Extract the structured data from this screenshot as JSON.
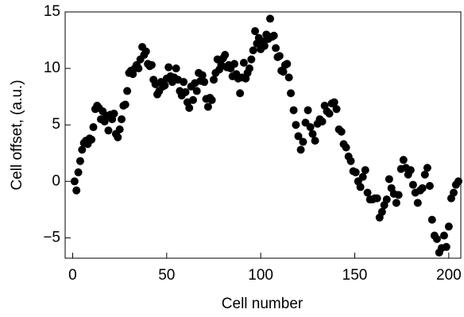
{
  "chart_data": {
    "type": "scatter",
    "xlabel": "Cell number",
    "ylabel": "Cell offset, (a.u.)",
    "color": "#000000",
    "xlim": [
      -4,
      206.4
    ],
    "ylim": [
      -6.8,
      15
    ],
    "xticks": [
      0,
      50,
      100,
      150,
      200
    ],
    "yticks": [
      {
        "value": -5,
        "label": "−5"
      },
      0,
      5,
      10,
      15
    ],
    "x": [
      1,
      2,
      3,
      4,
      5,
      6,
      7,
      8,
      9,
      10,
      11,
      12,
      13,
      14,
      15,
      16,
      17,
      18,
      19,
      20,
      21,
      22,
      23,
      24,
      25,
      26,
      27,
      28,
      29,
      30,
      31,
      32,
      33,
      34,
      35,
      36,
      37,
      38,
      39,
      40,
      41,
      42,
      43,
      44,
      45,
      46,
      47,
      48,
      49,
      50,
      51,
      52,
      53,
      54,
      55,
      56,
      57,
      58,
      59,
      60,
      61,
      62,
      63,
      64,
      65,
      66,
      67,
      68,
      69,
      70,
      71,
      72,
      73,
      74,
      75,
      76,
      77,
      78,
      79,
      80,
      81,
      82,
      83,
      84,
      85,
      86,
      87,
      88,
      89,
      90,
      91,
      92,
      93,
      94,
      95,
      96,
      97,
      98,
      99,
      100,
      101,
      102,
      103,
      104,
      105,
      106,
      107,
      108,
      109,
      110,
      111,
      112,
      113,
      114,
      115,
      116,
      117.5,
      118.7,
      120,
      121.3,
      122.5,
      123.8,
      125.1,
      126.4,
      127.6,
      128.9,
      130.2,
      131.4,
      132.7,
      134.0,
      135.2,
      136.5,
      137.8,
      139.1,
      140.3,
      141.6,
      142.9,
      144.1,
      145.4,
      146.7,
      147.9,
      149.2,
      150.5,
      151.8,
      153.0,
      154.3,
      155.6,
      156.8,
      158.1,
      159.4,
      160.6,
      161.9,
      163.2,
      164.5,
      165.7,
      167.0,
      168.3,
      169.5,
      170.8,
      172.1,
      173.3,
      174.6,
      175.9,
      177.2,
      178.4,
      179.7,
      181.0,
      182.2,
      183.5,
      184.8,
      186.0,
      187.3,
      188.6,
      189.9,
      191.1,
      192.4,
      193.7,
      194.9,
      196.2,
      197.5,
      198.7,
      200.0,
      201.3,
      202.6,
      203.8,
      205.1
    ],
    "values": [
      0,
      -0.8,
      0.8,
      1.8,
      2.8,
      3.4,
      3.6,
      3.3,
      3.8,
      3.7,
      4.8,
      6.4,
      6.7,
      6.5,
      5.5,
      6.2,
      5.3,
      5.8,
      4.5,
      5.9,
      5.5,
      6.0,
      4.2,
      3.9,
      4.6,
      5.5,
      6.7,
      6.8,
      8.0,
      9.6,
      9.8,
      9.5,
      10.0,
      10.3,
      10.0,
      10.8,
      11.9,
      11.2,
      11.5,
      10.4,
      10.2,
      10.3,
      9.0,
      8.6,
      7.7,
      8.0,
      8.8,
      8.4,
      8.5,
      9.1,
      10.1,
      9.3,
      8.8,
      9.2,
      10.0,
      9.0,
      8.0,
      7.6,
      8.8,
      7.9,
      7.0,
      6.5,
      8.4,
      7.2,
      8.7,
      8.0,
      9.6,
      8.9,
      9.4,
      8.8,
      7.3,
      6.6,
      7.4,
      7.2,
      9.0,
      9.6,
      10.8,
      9.9,
      10.3,
      10.9,
      11.2,
      10.1,
      10.3,
      10.0,
      9.3,
      10.4,
      9.5,
      9.1,
      7.8,
      9.2,
      10.5,
      9.1,
      9.6,
      10.0,
      10.8,
      11.6,
      13.3,
      12.2,
      12.7,
      11.7,
      12.4,
      12.0,
      13.0,
      12.6,
      14.4,
      12.8,
      12.9,
      11.8,
      11.0,
      11.1,
      9.8,
      9.7,
      10.3,
      10.4,
      9.2,
      7.8,
      6.3,
      5.0,
      4.0,
      2.8,
      3.5,
      5.2,
      6.3,
      4.8,
      4.2,
      3.6,
      5.1,
      5.5,
      5.3,
      6.7,
      6.2,
      6.0,
      6.9,
      7.0,
      6.4,
      4.6,
      4.4,
      3.3,
      3.0,
      2.2,
      1.8,
      0.9,
      0.8,
      0.0,
      -0.5,
      0.4,
      1.0,
      -1.0,
      -1.6,
      -1.6,
      -1.5,
      -1.5,
      -3.2,
      -2.7,
      -2.1,
      -1.6,
      0.2,
      -0.6,
      -1.1,
      -1.9,
      -1.2,
      1.1,
      1.9,
      1.2,
      0.6,
      1.0,
      -0.3,
      -1.0,
      -1.9,
      -0.8,
      -0.6,
      0.6,
      1.2,
      -0.4,
      -3.4,
      -4.8,
      -5.1,
      -6.3,
      -5.9,
      -4.8,
      -5.8,
      -4.0,
      -1.5,
      -1.0,
      -0.3,
      0.0
    ]
  }
}
